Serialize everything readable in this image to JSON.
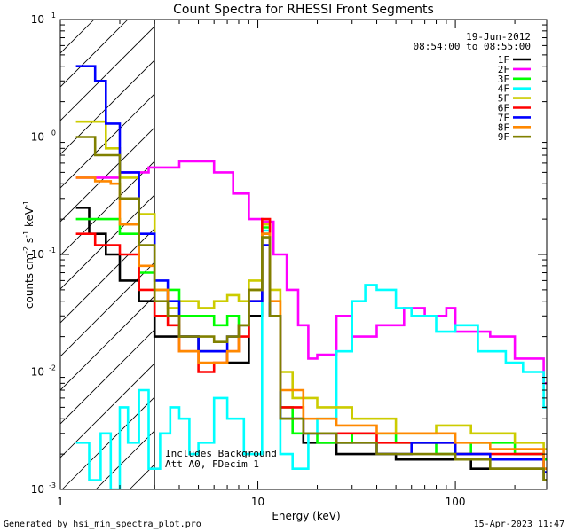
{
  "chart_data": {
    "type": "line",
    "title": "Count Spectra for RHESSI Front Segments",
    "xlabel": "Energy (keV)",
    "ylabel": {
      "prefix": "counts cm",
      "exp1": "-2",
      "mid": " s",
      "exp2": "-1",
      "suffix": " keV",
      "exp3": "-1"
    },
    "x_scale": "log",
    "y_scale": "log",
    "xlim": [
      1,
      290
    ],
    "ylim": [
      0.001,
      10
    ],
    "x_ticks": [
      {
        "value": 1,
        "label": "1"
      },
      {
        "value": 10,
        "label": "10"
      },
      {
        "value": 100,
        "label": "100"
      }
    ],
    "y_ticks": [
      {
        "value": 0.001,
        "base": "10",
        "exp": "-3"
      },
      {
        "value": 0.01,
        "base": "10",
        "exp": "-2"
      },
      {
        "value": 0.1,
        "base": "10",
        "exp": "-1"
      },
      {
        "value": 1,
        "base": "10",
        "exp": "0"
      },
      {
        "value": 10,
        "base": "10",
        "exp": "1"
      }
    ],
    "hatched_region_x": [
      1,
      3
    ],
    "legend": {
      "position": "top-right",
      "date": "19-Jun-2012",
      "time_range": "08:54:00 to 08:55:00"
    },
    "annotations": [
      "Includes Background",
      "Att A0, FDecim 1"
    ],
    "series": [
      {
        "name": "1F",
        "color": "#000000",
        "points": [
          [
            1.2,
            0.25
          ],
          [
            1.4,
            0.15
          ],
          [
            1.7,
            0.1
          ],
          [
            2.0,
            0.06
          ],
          [
            2.5,
            0.04
          ],
          [
            3.0,
            0.02
          ],
          [
            4.0,
            0.02
          ],
          [
            5.0,
            0.015
          ],
          [
            7.0,
            0.012
          ],
          [
            9.0,
            0.03
          ],
          [
            10.5,
            0.15
          ],
          [
            11.5,
            0.03
          ],
          [
            13,
            0.004
          ],
          [
            17,
            0.0025
          ],
          [
            25,
            0.002
          ],
          [
            35,
            0.002
          ],
          [
            50,
            0.0018
          ],
          [
            80,
            0.0018
          ],
          [
            120,
            0.0015
          ],
          [
            200,
            0.0015
          ],
          [
            280,
            0.0012
          ]
        ]
      },
      {
        "name": "2F",
        "color": "#ff00ff",
        "points": [
          [
            1.2,
            0.45
          ],
          [
            1.5,
            0.45
          ],
          [
            2.0,
            0.5
          ],
          [
            2.8,
            0.55
          ],
          [
            4,
            0.62
          ],
          [
            5,
            0.62
          ],
          [
            6,
            0.5
          ],
          [
            7.5,
            0.33
          ],
          [
            9,
            0.2
          ],
          [
            10.5,
            0.19
          ],
          [
            12,
            0.1
          ],
          [
            14,
            0.05
          ],
          [
            16,
            0.025
          ],
          [
            18,
            0.013
          ],
          [
            20,
            0.014
          ],
          [
            25,
            0.03
          ],
          [
            30,
            0.02
          ],
          [
            40,
            0.025
          ],
          [
            55,
            0.035
          ],
          [
            70,
            0.03
          ],
          [
            90,
            0.035
          ],
          [
            100,
            0.022
          ],
          [
            150,
            0.02
          ],
          [
            200,
            0.013
          ],
          [
            280,
            0.008
          ]
        ]
      },
      {
        "name": "3F",
        "color": "#00ff00",
        "points": [
          [
            1.2,
            0.2
          ],
          [
            1.5,
            0.2
          ],
          [
            2.0,
            0.15
          ],
          [
            2.5,
            0.07
          ],
          [
            3.0,
            0.05
          ],
          [
            4,
            0.03
          ],
          [
            5,
            0.03
          ],
          [
            6,
            0.025
          ],
          [
            7,
            0.03
          ],
          [
            8,
            0.025
          ],
          [
            9,
            0.05
          ],
          [
            10.5,
            0.17
          ],
          [
            11.5,
            0.03
          ],
          [
            13,
            0.005
          ],
          [
            15,
            0.003
          ],
          [
            20,
            0.0025
          ],
          [
            30,
            0.003
          ],
          [
            50,
            0.0025
          ],
          [
            80,
            0.002
          ],
          [
            120,
            0.0025
          ],
          [
            200,
            0.002
          ],
          [
            280,
            0.0018
          ]
        ]
      },
      {
        "name": "4F",
        "color": "#00ffff",
        "points": [
          [
            1.2,
            0.0025
          ],
          [
            1.4,
            0.0012
          ],
          [
            1.6,
            0.003
          ],
          [
            1.8,
            0.001
          ],
          [
            2.0,
            0.005
          ],
          [
            2.2,
            0.0025
          ],
          [
            2.5,
            0.007
          ],
          [
            2.8,
            0.0015
          ],
          [
            3.2,
            0.003
          ],
          [
            3.6,
            0.005
          ],
          [
            4,
            0.004
          ],
          [
            4.5,
            0.002
          ],
          [
            5,
            0.0025
          ],
          [
            6,
            0.006
          ],
          [
            7,
            0.004
          ],
          [
            8.5,
            0.002
          ],
          [
            10.5,
            0.16
          ],
          [
            11.5,
            0.03
          ],
          [
            13,
            0.002
          ],
          [
            15,
            0.0015
          ],
          [
            18,
            0.003
          ],
          [
            20,
            0.004
          ],
          [
            25,
            0.015
          ],
          [
            30,
            0.04
          ],
          [
            35,
            0.055
          ],
          [
            40,
            0.05
          ],
          [
            50,
            0.035
          ],
          [
            60,
            0.03
          ],
          [
            80,
            0.022
          ],
          [
            100,
            0.025
          ],
          [
            130,
            0.015
          ],
          [
            180,
            0.012
          ],
          [
            220,
            0.01
          ],
          [
            280,
            0.005
          ]
        ]
      },
      {
        "name": "5F",
        "color": "#cccc00",
        "points": [
          [
            1.2,
            1.35
          ],
          [
            1.4,
            1.35
          ],
          [
            1.7,
            0.8
          ],
          [
            2.0,
            0.45
          ],
          [
            2.5,
            0.22
          ],
          [
            3.0,
            0.05
          ],
          [
            3.5,
            0.035
          ],
          [
            4,
            0.04
          ],
          [
            5,
            0.035
          ],
          [
            6,
            0.04
          ],
          [
            7,
            0.045
          ],
          [
            8,
            0.04
          ],
          [
            9,
            0.06
          ],
          [
            10.5,
            0.18
          ],
          [
            11.5,
            0.05
          ],
          [
            13,
            0.01
          ],
          [
            15,
            0.006
          ],
          [
            20,
            0.005
          ],
          [
            30,
            0.004
          ],
          [
            50,
            0.003
          ],
          [
            80,
            0.0035
          ],
          [
            120,
            0.003
          ],
          [
            200,
            0.0025
          ],
          [
            280,
            0.0022
          ]
        ]
      },
      {
        "name": "6F",
        "color": "#ff0000",
        "points": [
          [
            1.2,
            0.15
          ],
          [
            1.5,
            0.12
          ],
          [
            2.0,
            0.1
          ],
          [
            2.5,
            0.05
          ],
          [
            3.0,
            0.03
          ],
          [
            3.5,
            0.025
          ],
          [
            4,
            0.015
          ],
          [
            5,
            0.01
          ],
          [
            6,
            0.012
          ],
          [
            7,
            0.015
          ],
          [
            8,
            0.02
          ],
          [
            9,
            0.04
          ],
          [
            10.5,
            0.2
          ],
          [
            11.5,
            0.03
          ],
          [
            13,
            0.005
          ],
          [
            17,
            0.003
          ],
          [
            25,
            0.003
          ],
          [
            40,
            0.0025
          ],
          [
            60,
            0.0025
          ],
          [
            100,
            0.002
          ],
          [
            150,
            0.002
          ],
          [
            280,
            0.0015
          ]
        ]
      },
      {
        "name": "7F",
        "color": "#0000ff",
        "points": [
          [
            1.2,
            4.0
          ],
          [
            1.5,
            3.0
          ],
          [
            1.7,
            1.3
          ],
          [
            2.0,
            0.5
          ],
          [
            2.5,
            0.15
          ],
          [
            3.0,
            0.06
          ],
          [
            3.5,
            0.04
          ],
          [
            4,
            0.02
          ],
          [
            5,
            0.015
          ],
          [
            6,
            0.015
          ],
          [
            7,
            0.02
          ],
          [
            8,
            0.025
          ],
          [
            9,
            0.04
          ],
          [
            10.5,
            0.12
          ],
          [
            11.5,
            0.03
          ],
          [
            13,
            0.004
          ],
          [
            17,
            0.003
          ],
          [
            25,
            0.0025
          ],
          [
            40,
            0.002
          ],
          [
            60,
            0.0025
          ],
          [
            100,
            0.002
          ],
          [
            150,
            0.0018
          ],
          [
            280,
            0.0014
          ]
        ]
      },
      {
        "name": "8F",
        "color": "#ff8800",
        "points": [
          [
            1.2,
            0.45
          ],
          [
            1.5,
            0.42
          ],
          [
            1.8,
            0.4
          ],
          [
            2.0,
            0.18
          ],
          [
            2.5,
            0.08
          ],
          [
            3.0,
            0.05
          ],
          [
            3.5,
            0.03
          ],
          [
            4,
            0.015
          ],
          [
            5,
            0.012
          ],
          [
            6,
            0.012
          ],
          [
            7,
            0.015
          ],
          [
            8,
            0.025
          ],
          [
            9,
            0.05
          ],
          [
            10.5,
            0.15
          ],
          [
            11.5,
            0.04
          ],
          [
            13,
            0.007
          ],
          [
            17,
            0.004
          ],
          [
            25,
            0.0035
          ],
          [
            40,
            0.003
          ],
          [
            60,
            0.003
          ],
          [
            100,
            0.0025
          ],
          [
            150,
            0.0022
          ],
          [
            280,
            0.0015
          ]
        ]
      },
      {
        "name": "9F",
        "color": "#808000",
        "points": [
          [
            1.2,
            1.0
          ],
          [
            1.5,
            0.7
          ],
          [
            2.0,
            0.3
          ],
          [
            2.5,
            0.12
          ],
          [
            3.0,
            0.04
          ],
          [
            3.5,
            0.03
          ],
          [
            4,
            0.02
          ],
          [
            5,
            0.02
          ],
          [
            6,
            0.018
          ],
          [
            7,
            0.02
          ],
          [
            8,
            0.025
          ],
          [
            9,
            0.05
          ],
          [
            10.5,
            0.14
          ],
          [
            11.5,
            0.03
          ],
          [
            13,
            0.004
          ],
          [
            17,
            0.003
          ],
          [
            25,
            0.0025
          ],
          [
            40,
            0.002
          ],
          [
            60,
            0.002
          ],
          [
            100,
            0.0018
          ],
          [
            150,
            0.0015
          ],
          [
            280,
            0.0012
          ]
        ]
      }
    ]
  },
  "footer": {
    "generated_by": "Generated by hsi_min_spectra_plot.pro",
    "timestamp": "15-Apr-2023 11:47"
  }
}
